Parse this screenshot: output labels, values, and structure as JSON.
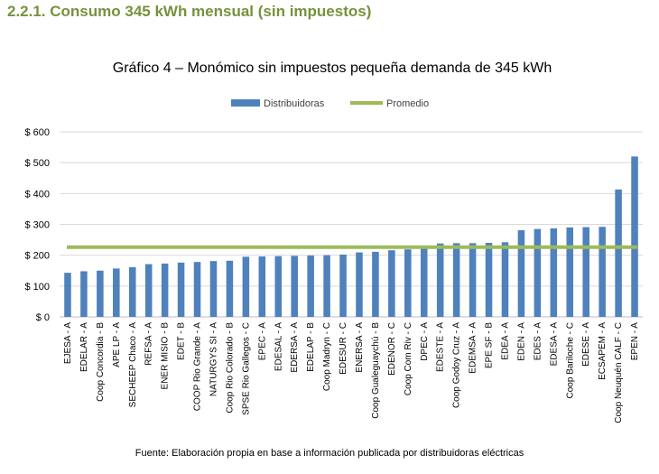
{
  "section_heading": "2.2.1. Consumo 345 kWh mensual (sin impuestos)",
  "source_note": "Fuente: Elaboración propia en base a información publicada por distribuidoras eléctricas",
  "colors": {
    "bar": "#4f81bd",
    "average": "#9bbb59",
    "heading": "#76923c",
    "grid": "#d9d9d9"
  },
  "chart_data": {
    "type": "bar",
    "title": "Gráfico 4 – Monómico sin impuestos pequeña demanda de 345 kWh",
    "legend": [
      {
        "label": "Distribuidoras",
        "kind": "bar"
      },
      {
        "label": "Promedio",
        "kind": "line"
      }
    ],
    "legend_position": "top-center",
    "xlabel": "",
    "ylabel": "",
    "ylim": [
      0,
      600
    ],
    "yticks": [
      0,
      100,
      200,
      300,
      400,
      500,
      600
    ],
    "ytick_labels": [
      "$ 0",
      "$ 100",
      "$ 200",
      "$ 300",
      "$ 400",
      "$ 500",
      "$ 600"
    ],
    "grid": true,
    "categories": [
      "EJESA - A",
      "EDELAR - A",
      "Coop Concordia - B",
      "APE LP - A",
      "SECHEEP Chaco - A",
      "REFSA - A",
      "ENER MISIO - B",
      "EDET - B",
      "COOP Rio Grande - A",
      "NATURGYS SI - A",
      "Coop Rio Colorado - B",
      "SPSE Rio Gallegos - C",
      "EPEC - A",
      "EDESAL - A",
      "EDERSA - A",
      "EDELAP - B",
      "Coop Madryn - C",
      "EDESUR - C",
      "ENERSA - A",
      "Coop Gualeguaychú - B",
      "EDENOR - C",
      "Coop Com Riv - C",
      "DPEC - A",
      "EDESTE - A",
      "Coop Godoy Cruz - A",
      "EDEMSA - A",
      "EPE SF - B",
      "EDEA - A",
      "EDEN - A",
      "EDES - A",
      "EDESA - A",
      "Coop Bariloche - C",
      "EDESE - A",
      "ECSAPEM - A",
      "Coop Neuquén CALF - C",
      "EPEN - A"
    ],
    "series": [
      {
        "name": "Distribuidoras",
        "values": [
          143,
          148,
          150,
          157,
          161,
          171,
          173,
          176,
          178,
          181,
          182,
          195,
          196,
          197,
          198,
          199,
          200,
          202,
          209,
          211,
          216,
          219,
          222,
          238,
          239,
          239,
          240,
          242,
          281,
          285,
          287,
          290,
          291,
          292,
          413,
          520
        ]
      }
    ],
    "average": 226
  }
}
